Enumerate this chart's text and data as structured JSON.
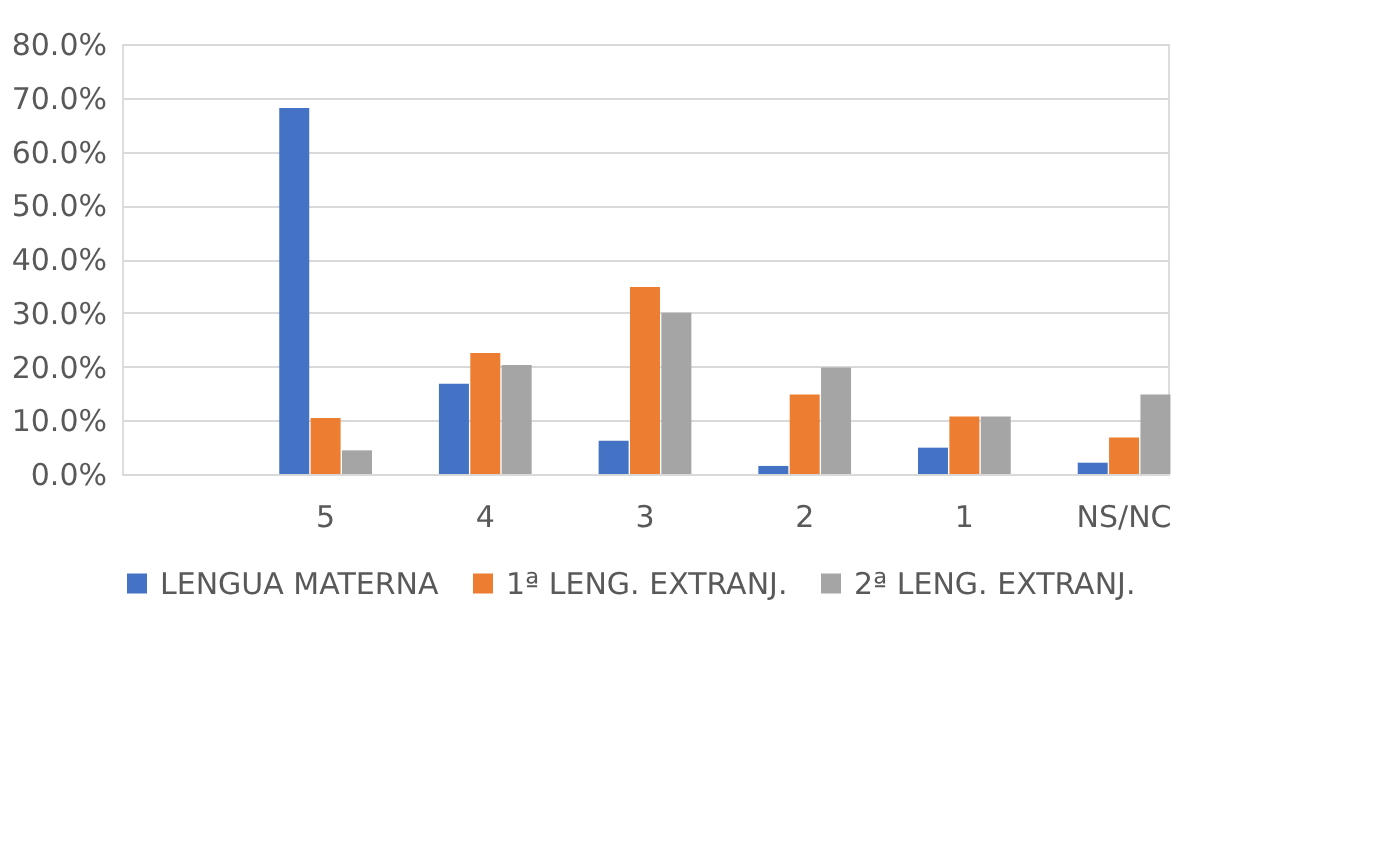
{
  "chart_data": {
    "type": "bar",
    "categories": [
      null,
      "5",
      "4",
      "3",
      "2",
      "1",
      "NS/NC"
    ],
    "series": [
      {
        "name": "LENGUA MATERNA",
        "color": "#4472c4",
        "values": [
          null,
          68.1,
          16.8,
          6.2,
          1.5,
          4.9,
          2.1
        ]
      },
      {
        "name": "1ª LENG. EXTRANJ.",
        "color": "#ed7d31",
        "values": [
          null,
          10.4,
          22.5,
          34.8,
          14.8,
          10.7,
          6.8
        ]
      },
      {
        "name": "2ª LENG. EXTRANJ.",
        "color": "#a5a5a5",
        "values": [
          null,
          4.4,
          20.3,
          30.0,
          19.8,
          10.7,
          14.8
        ]
      }
    ],
    "ylim": [
      0,
      80
    ],
    "yticks": [
      {
        "value": 0,
        "label": "0.0%"
      },
      {
        "value": 10,
        "label": "10.0%"
      },
      {
        "value": 20,
        "label": "20.0%"
      },
      {
        "value": 30,
        "label": "30.0%"
      },
      {
        "value": 40,
        "label": "40.0%"
      },
      {
        "value": 50,
        "label": "50.0%"
      },
      {
        "value": 60,
        "label": "60.0%"
      },
      {
        "value": 70,
        "label": "70.0%"
      },
      {
        "value": 80,
        "label": "80.0%"
      }
    ],
    "grid": "y",
    "legend": "bottom"
  }
}
